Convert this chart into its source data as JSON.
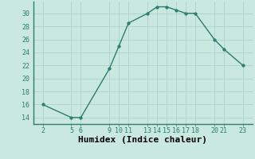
{
  "x": [
    2,
    5,
    6,
    9,
    10,
    11,
    13,
    14,
    15,
    16,
    17,
    18,
    20,
    21,
    23
  ],
  "y": [
    16,
    14,
    14,
    21.5,
    25,
    28.5,
    30,
    31,
    31,
    30.5,
    30,
    30,
    26,
    24.5,
    22
  ],
  "line_color": "#2e7d6e",
  "marker_color": "#2e7d6e",
  "bg_color": "#c8e8e0",
  "grid_color": "#b0d0cc",
  "xlabel": "Humidex (Indice chaleur)",
  "xlabel_fontsize": 8,
  "xticks": [
    2,
    5,
    6,
    9,
    10,
    11,
    13,
    14,
    15,
    16,
    17,
    18,
    20,
    21,
    23
  ],
  "yticks": [
    14,
    16,
    18,
    20,
    22,
    24,
    26,
    28,
    30
  ],
  "ylim": [
    13.0,
    31.8
  ],
  "xlim": [
    1.0,
    24.0
  ]
}
